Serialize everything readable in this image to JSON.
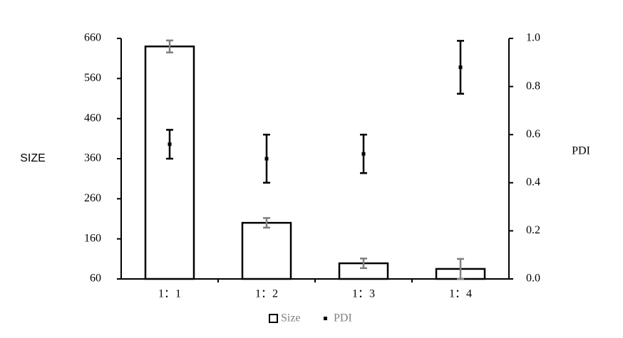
{
  "chart_data": {
    "type": "bar",
    "categories": [
      "1：1",
      "1：2",
      "1：3",
      "1：4"
    ],
    "series": [
      {
        "name": "Size",
        "color": "#ffffff",
        "edge_color": "#000000",
        "error_color": "#808080",
        "values": [
          640,
          200,
          99,
          85
        ],
        "errors": [
          15,
          12,
          12,
          25
        ]
      },
      {
        "name": "PDI",
        "axis": "y2",
        "color": "#000000",
        "values": [
          0.56,
          0.5,
          0.52,
          0.88
        ],
        "errors": [
          0.06,
          0.1,
          0.08,
          0.11
        ]
      }
    ],
    "ylabel": "SIZE",
    "y2label": "PDI",
    "ylim": [
      60,
      660
    ],
    "yticks": [
      60,
      160,
      260,
      360,
      460,
      560,
      660
    ],
    "y2lim": [
      0,
      1
    ],
    "y2ticks": [
      {
        "value": 0,
        "label": "0.0"
      },
      0.2,
      0.4,
      0.6,
      0.8,
      {
        "value": 1,
        "label": "1.0"
      }
    ],
    "grid": false
  }
}
